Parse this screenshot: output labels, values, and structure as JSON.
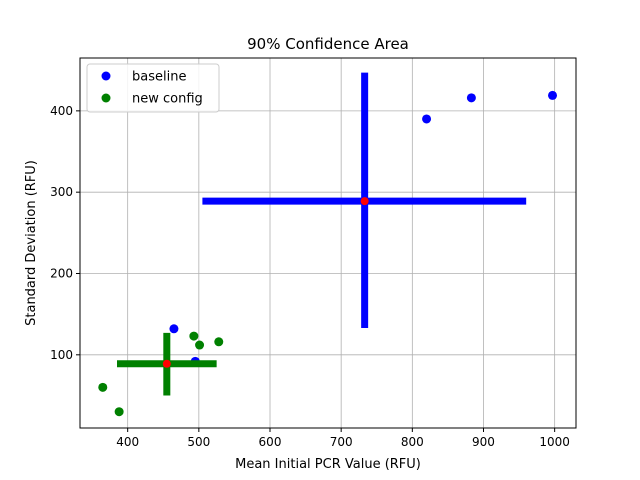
{
  "chart_data": {
    "type": "scatter",
    "title": "90% Confidence Area",
    "xlabel": "Mean Initial PCR Value (RFU)",
    "ylabel": "Standard Deviation (RFU)",
    "xlim": [
      333,
      1030
    ],
    "ylim": [
      10,
      465
    ],
    "xticks": [
      400,
      500,
      600,
      700,
      800,
      900,
      1000
    ],
    "yticks": [
      100,
      200,
      300,
      400
    ],
    "grid": true,
    "legend_position": "top-left",
    "series": [
      {
        "name": "baseline",
        "color": "#0000ff",
        "points": [
          [
            465,
            132
          ],
          [
            495,
            92
          ],
          [
            820,
            390
          ],
          [
            883,
            416
          ],
          [
            997,
            419
          ]
        ],
        "center": [
          733,
          289
        ],
        "x_interval": [
          505,
          960
        ],
        "y_interval": [
          133,
          447
        ]
      },
      {
        "name": "new config",
        "color": "#008000",
        "points": [
          [
            365,
            60
          ],
          [
            388,
            30
          ],
          [
            493,
            123
          ],
          [
            501,
            112
          ],
          [
            528,
            116
          ]
        ],
        "center": [
          455,
          89
        ],
        "x_interval": [
          385,
          525
        ],
        "y_interval": [
          50,
          127
        ]
      }
    ],
    "center_marker_color": "#ff0000"
  }
}
